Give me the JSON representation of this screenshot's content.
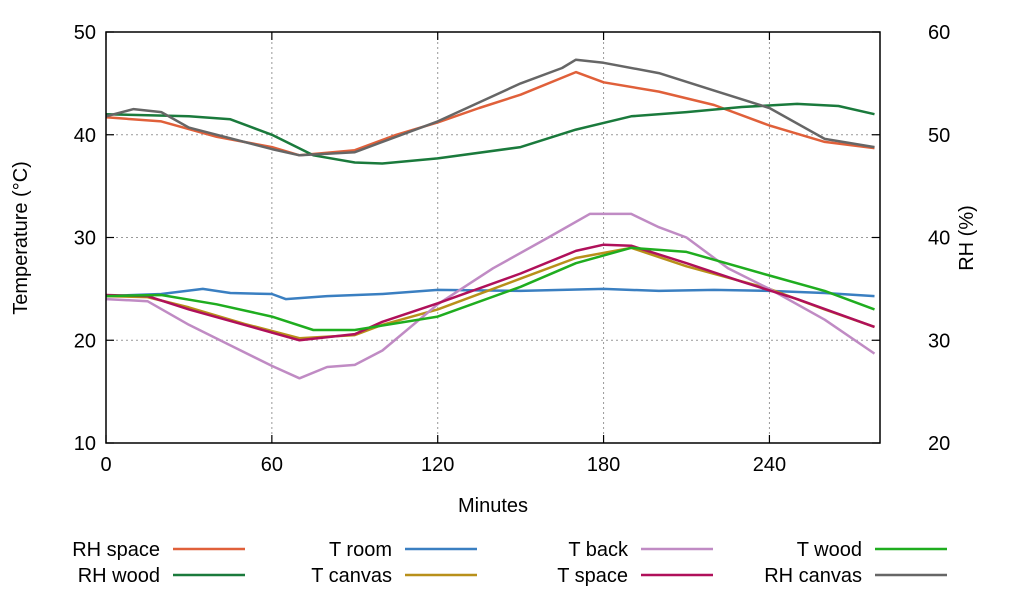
{
  "chart_data": {
    "type": "line",
    "title": "",
    "xlabel": "Minutes",
    "ylabel_left": "Temperature (°C)",
    "ylabel_right": "RH (%)",
    "xlim": [
      0,
      280
    ],
    "ylim_left": [
      10,
      50
    ],
    "ylim_right": [
      20,
      60
    ],
    "xticks": [
      0,
      60,
      120,
      180,
      240
    ],
    "yticks_left": [
      10,
      20,
      30,
      40,
      50
    ],
    "yticks_right": [
      20,
      30,
      40,
      50,
      60
    ],
    "grid": true,
    "legend_placement": "bottom",
    "series": [
      {
        "name": "RH space",
        "axis": "right",
        "color": "#e0603a",
        "x": [
          0,
          20,
          40,
          60,
          70,
          90,
          105,
          120,
          135,
          150,
          170,
          180,
          200,
          220,
          240,
          260,
          278
        ],
        "y": [
          51.7,
          51.3,
          49.8,
          48.8,
          48.0,
          48.5,
          50.0,
          51.2,
          52.6,
          53.9,
          56.1,
          55.1,
          54.2,
          52.9,
          50.9,
          49.3,
          48.7
        ]
      },
      {
        "name": "RH wood",
        "axis": "right",
        "color": "#1a7a3c",
        "x": [
          0,
          30,
          45,
          60,
          75,
          90,
          100,
          120,
          150,
          170,
          190,
          210,
          230,
          250,
          265,
          278
        ],
        "y": [
          52.0,
          51.8,
          51.5,
          50.0,
          48.0,
          47.3,
          47.2,
          47.7,
          48.8,
          50.5,
          51.8,
          52.2,
          52.7,
          53.0,
          52.8,
          52.0
        ]
      },
      {
        "name": "T room",
        "axis": "left",
        "color": "#3a7fc1",
        "x": [
          0,
          20,
          35,
          45,
          60,
          65,
          80,
          100,
          120,
          150,
          180,
          200,
          220,
          240,
          260,
          278
        ],
        "y": [
          24.3,
          24.5,
          25.0,
          24.6,
          24.5,
          24.0,
          24.3,
          24.5,
          24.9,
          24.8,
          25.0,
          24.8,
          24.9,
          24.8,
          24.6,
          24.3
        ]
      },
      {
        "name": "T canvas",
        "axis": "left",
        "color": "#b8901a",
        "x": [
          0,
          15,
          30,
          50,
          70,
          90,
          100,
          120,
          150,
          170,
          190,
          210,
          240,
          260,
          278
        ],
        "y": [
          24.3,
          24.2,
          23.2,
          21.6,
          20.2,
          20.5,
          21.5,
          23.0,
          26.0,
          28.0,
          29.0,
          27.2,
          25.0,
          23.0,
          21.3
        ]
      },
      {
        "name": "T back",
        "axis": "left",
        "color": "#c08bc4",
        "x": [
          0,
          15,
          30,
          45,
          60,
          70,
          80,
          90,
          100,
          120,
          140,
          160,
          175,
          190,
          200,
          210,
          225,
          240,
          260,
          278
        ],
        "y": [
          24.0,
          23.8,
          21.5,
          19.5,
          17.5,
          16.3,
          17.4,
          17.6,
          19.0,
          23.5,
          27.0,
          30.0,
          32.3,
          32.3,
          31.0,
          30.0,
          27.0,
          25.0,
          22.0,
          18.7
        ]
      },
      {
        "name": "T space",
        "axis": "left",
        "color": "#b0105a",
        "x": [
          0,
          15,
          30,
          50,
          70,
          90,
          100,
          120,
          150,
          170,
          180,
          190,
          210,
          230,
          250,
          278
        ],
        "y": [
          24.4,
          24.3,
          23.0,
          21.5,
          20.0,
          20.6,
          21.8,
          23.6,
          26.5,
          28.7,
          29.3,
          29.2,
          27.5,
          25.7,
          24.0,
          21.3
        ]
      },
      {
        "name": "T wood",
        "axis": "left",
        "color": "#1fad1f",
        "x": [
          0,
          20,
          40,
          60,
          75,
          90,
          120,
          150,
          170,
          190,
          210,
          240,
          260,
          278
        ],
        "y": [
          24.3,
          24.4,
          23.5,
          22.3,
          21.0,
          21.0,
          22.3,
          25.2,
          27.5,
          29.0,
          28.6,
          26.3,
          24.8,
          23.0
        ]
      },
      {
        "name": "RH canvas",
        "axis": "right",
        "color": "#666666",
        "x": [
          0,
          10,
          20,
          30,
          60,
          70,
          90,
          120,
          150,
          165,
          170,
          180,
          200,
          220,
          240,
          260,
          278
        ],
        "y": [
          51.8,
          52.5,
          52.2,
          50.7,
          48.6,
          48.0,
          48.3,
          51.3,
          55.0,
          56.5,
          57.3,
          57.0,
          56.0,
          54.3,
          52.6,
          49.6,
          48.8
        ]
      }
    ]
  }
}
